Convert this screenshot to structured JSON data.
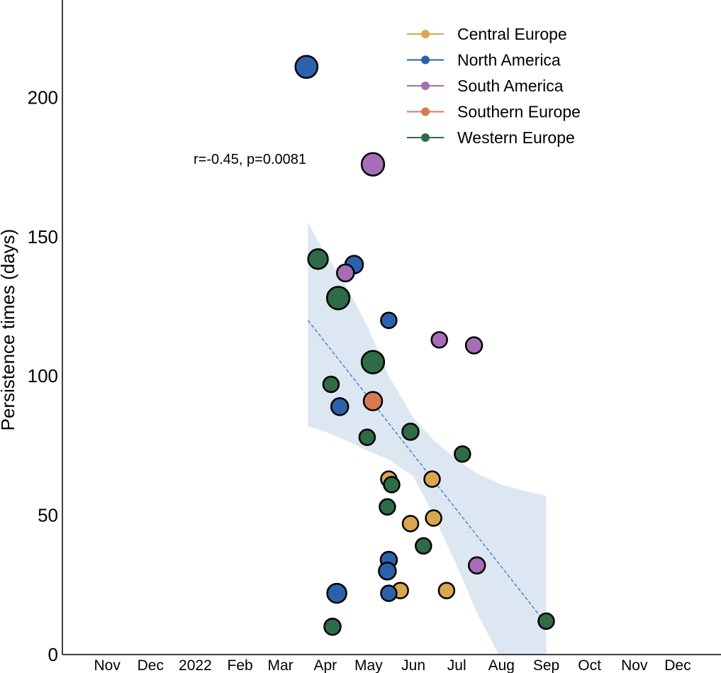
{
  "chart_data": {
    "type": "scatter",
    "ylabel": "Persistence times (days)",
    "ylim": [
      0,
      235
    ],
    "xlim": [
      "2021-10-01",
      "2022-12-31"
    ],
    "yticks": [
      0,
      50,
      100,
      150,
      200
    ],
    "x_tick_labels": [
      {
        "date": "2021-11-01",
        "label": "Nov"
      },
      {
        "date": "2021-12-01",
        "label": "Dec"
      },
      {
        "date": "2022-01-01",
        "label": "2022"
      },
      {
        "date": "2022-02-01",
        "label": "Feb"
      },
      {
        "date": "2022-03-01",
        "label": "Mar"
      },
      {
        "date": "2022-04-01",
        "label": "Apr"
      },
      {
        "date": "2022-05-01",
        "label": "May"
      },
      {
        "date": "2022-06-01",
        "label": "Jun"
      },
      {
        "date": "2022-07-01",
        "label": "Jul"
      },
      {
        "date": "2022-08-01",
        "label": "Aug"
      },
      {
        "date": "2022-09-01",
        "label": "Sep"
      },
      {
        "date": "2022-10-01",
        "label": "Oct"
      },
      {
        "date": "2022-11-01",
        "label": "Nov"
      },
      {
        "date": "2022-12-01",
        "label": "Dec"
      }
    ],
    "annotation": "r=-0.45, p=0.0081",
    "grid": false,
    "legend_position": "top-right",
    "series": [
      {
        "name": "Central Europe",
        "color": "#d8a84e",
        "points": [
          {
            "x": "2022-05-15",
            "y": 63,
            "size": 1
          },
          {
            "x": "2022-06-14",
            "y": 63,
            "size": 1
          },
          {
            "x": "2022-05-30",
            "y": 47,
            "size": 1
          },
          {
            "x": "2022-06-15",
            "y": 49,
            "size": 1
          },
          {
            "x": "2022-05-23",
            "y": 23,
            "size": 1
          },
          {
            "x": "2022-06-24",
            "y": 23,
            "size": 1
          }
        ]
      },
      {
        "name": "North America",
        "color": "#2b62ab",
        "points": [
          {
            "x": "2022-03-19",
            "y": 211,
            "size": 2
          },
          {
            "x": "2022-04-21",
            "y": 140,
            "size": 1.3
          },
          {
            "x": "2022-05-15",
            "y": 120,
            "size": 1
          },
          {
            "x": "2022-04-11",
            "y": 89,
            "size": 1.2
          },
          {
            "x": "2022-05-15",
            "y": 34,
            "size": 1.1
          },
          {
            "x": "2022-05-14",
            "y": 30,
            "size": 1.2
          },
          {
            "x": "2022-05-15",
            "y": 22,
            "size": 1
          },
          {
            "x": "2022-04-09",
            "y": 22,
            "size": 1.5
          }
        ]
      },
      {
        "name": "South America",
        "color": "#a76db6",
        "points": [
          {
            "x": "2022-05-04",
            "y": 176,
            "size": 2.1
          },
          {
            "x": "2022-04-15",
            "y": 137,
            "size": 1.2
          },
          {
            "x": "2022-06-19",
            "y": 113,
            "size": 1
          },
          {
            "x": "2022-07-13",
            "y": 111,
            "size": 1.1
          },
          {
            "x": "2022-07-15",
            "y": 32,
            "size": 1.1
          }
        ]
      },
      {
        "name": "Southern Europe",
        "color": "#d97a4e",
        "points": [
          {
            "x": "2022-05-04",
            "y": 91,
            "size": 1.4
          }
        ]
      },
      {
        "name": "Western Europe",
        "color": "#2f6b47",
        "points": [
          {
            "x": "2022-03-27",
            "y": 142,
            "size": 1.6
          },
          {
            "x": "2022-04-10",
            "y": 128,
            "size": 2.1
          },
          {
            "x": "2022-05-04",
            "y": 105,
            "size": 2.1
          },
          {
            "x": "2022-04-05",
            "y": 97,
            "size": 1
          },
          {
            "x": "2022-05-30",
            "y": 80,
            "size": 1.1
          },
          {
            "x": "2022-04-30",
            "y": 78,
            "size": 1
          },
          {
            "x": "2022-07-05",
            "y": 72,
            "size": 1
          },
          {
            "x": "2022-05-17",
            "y": 61,
            "size": 1
          },
          {
            "x": "2022-05-14",
            "y": 53,
            "size": 1
          },
          {
            "x": "2022-06-08",
            "y": 39,
            "size": 1
          },
          {
            "x": "2022-04-06",
            "y": 10,
            "size": 1.1
          },
          {
            "x": "2022-09-01",
            "y": 12,
            "size": 1
          }
        ]
      }
    ],
    "regression": {
      "color": "#4a86c8",
      "line": [
        {
          "x": "2022-03-20",
          "y": 120
        },
        {
          "x": "2022-09-01",
          "y": 11
        }
      ],
      "band_color": "#dce7f2",
      "band_upper": [
        {
          "x": "2022-03-20",
          "y": 155
        },
        {
          "x": "2022-04-01",
          "y": 144
        },
        {
          "x": "2022-04-15",
          "y": 133
        },
        {
          "x": "2022-05-01",
          "y": 117
        },
        {
          "x": "2022-05-15",
          "y": 100
        },
        {
          "x": "2022-06-01",
          "y": 85
        },
        {
          "x": "2022-06-15",
          "y": 77
        },
        {
          "x": "2022-07-01",
          "y": 70
        },
        {
          "x": "2022-07-15",
          "y": 65
        },
        {
          "x": "2022-08-01",
          "y": 61
        },
        {
          "x": "2022-08-15",
          "y": 59
        },
        {
          "x": "2022-09-01",
          "y": 57
        }
      ],
      "band_lower": [
        {
          "x": "2022-09-01",
          "y": -5
        },
        {
          "x": "2022-08-15",
          "y": -5
        },
        {
          "x": "2022-08-01",
          "y": -2
        },
        {
          "x": "2022-07-15",
          "y": 15
        },
        {
          "x": "2022-07-01",
          "y": 32
        },
        {
          "x": "2022-06-15",
          "y": 50
        },
        {
          "x": "2022-06-01",
          "y": 64
        },
        {
          "x": "2022-05-15",
          "y": 70
        },
        {
          "x": "2022-05-01",
          "y": 73
        },
        {
          "x": "2022-04-15",
          "y": 77
        },
        {
          "x": "2022-04-01",
          "y": 80
        },
        {
          "x": "2022-03-20",
          "y": 82
        }
      ]
    }
  }
}
